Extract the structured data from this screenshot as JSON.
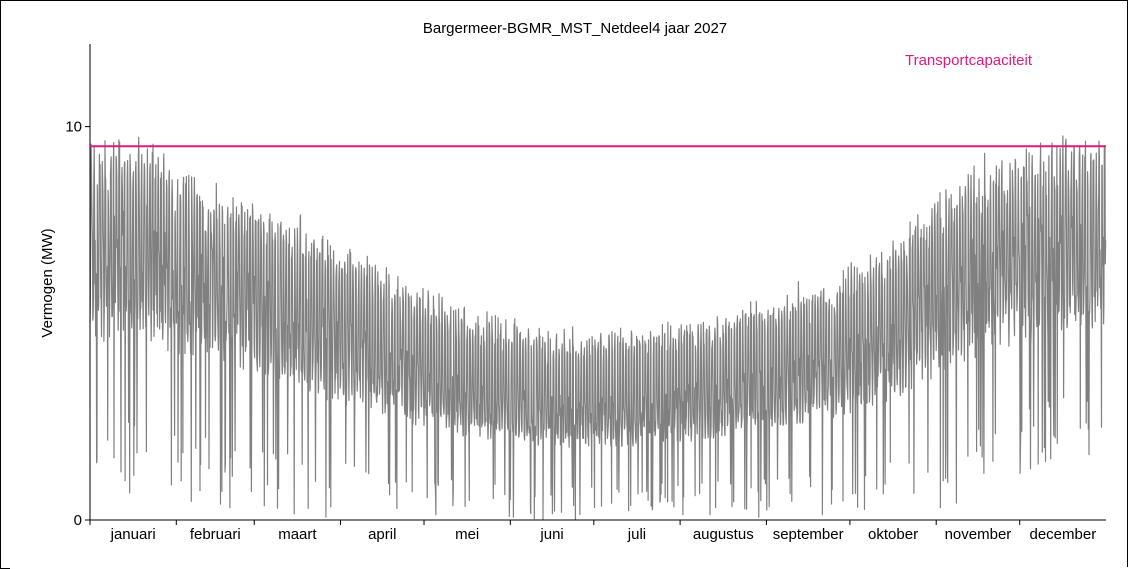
{
  "chart_data": {
    "type": "line",
    "title": "Bargermeer-BGMR_MST_Netdeel4 jaar 2027",
    "xlabel": "",
    "ylabel": "Vermogen (MW)",
    "ylim": [
      0,
      12.1
    ],
    "yticks": [
      0,
      10
    ],
    "ytick_labels": [
      "0",
      "10"
    ],
    "x_tick_labels": [
      "januari",
      "februari",
      "maart",
      "april",
      "mei",
      "juni",
      "juli",
      "augustus",
      "september",
      "oktober",
      "november",
      "december"
    ],
    "grid": false,
    "colors": {
      "series": "#808080",
      "capacity": "#e0197d"
    },
    "series": [
      {
        "name": "",
        "resolution": "hourly (daily peak and minimum envelope)",
        "monthly_envelope": {
          "months": [
            "januari",
            "februari",
            "maart",
            "april",
            "mei",
            "juni",
            "juli",
            "augustus",
            "september",
            "oktober",
            "november",
            "december"
          ],
          "daily_peak_max": [
            10.1,
            8.8,
            8.0,
            6.6,
            5.5,
            4.9,
            5.1,
            5.4,
            6.2,
            7.4,
            9.4,
            10.0
          ],
          "typical_level": [
            5.6,
            5.0,
            4.1,
            3.3,
            2.6,
            2.3,
            2.3,
            2.6,
            3.0,
            3.8,
            5.2,
            5.8
          ],
          "daily_min": [
            0.6,
            0.3,
            0.0,
            0.0,
            0.0,
            0.0,
            0.0,
            0.0,
            0.0,
            0.0,
            0.4,
            1.5
          ]
        }
      }
    ],
    "reference_lines": [
      {
        "name": "Transportcapaciteit",
        "y": 9.5,
        "color": "#e0197d"
      }
    ],
    "legend_placement": "top-right"
  }
}
